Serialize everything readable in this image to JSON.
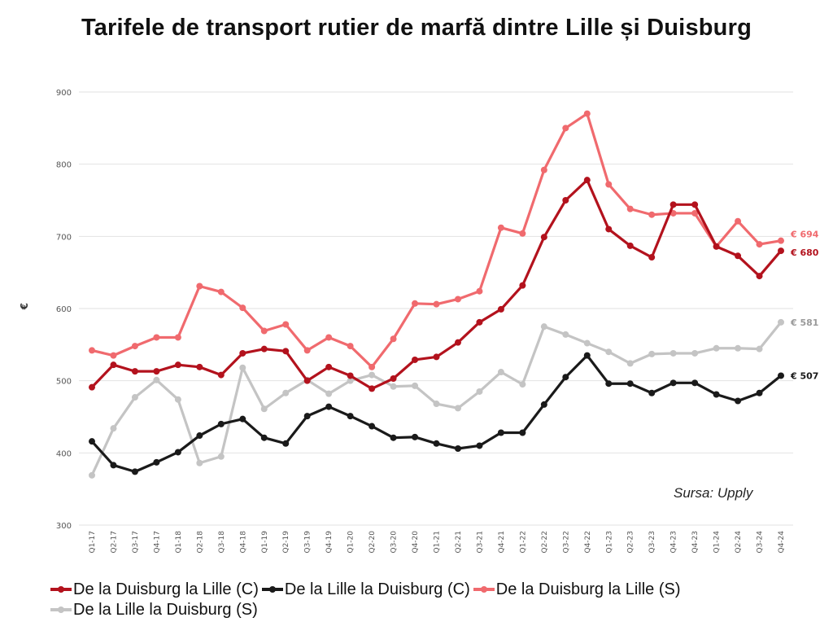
{
  "chart_data": {
    "type": "line",
    "title": "Tarifele de transport rutier de marfă dintre Lille și Duisburg",
    "xlabel": "",
    "ylabel": "€",
    "ylim": [
      300,
      900
    ],
    "yticks": [
      300,
      400,
      500,
      600,
      700,
      800,
      900
    ],
    "grid": true,
    "legend_position": "bottom",
    "categories": [
      "Q1-17",
      "Q2-17",
      "Q3-17",
      "Q4-17",
      "Q1-18",
      "Q2-18",
      "Q3-18",
      "Q4-18",
      "Q1-19",
      "Q2-19",
      "Q3-19",
      "Q4-19",
      "Q1-20",
      "Q2-20",
      "Q3-20",
      "Q4-20",
      "Q1-21",
      "Q2-21",
      "Q3-21",
      "Q4-21",
      "Q1-22",
      "Q2-22",
      "Q3-22",
      "Q4-22",
      "Q1-23",
      "Q2-23",
      "Q3-23",
      "Q4-23",
      "Q4-23",
      "Q1-24",
      "Q2-24",
      "Q3-24",
      "Q4-24"
    ],
    "series": [
      {
        "name": "De la Duisburg la Lille (C)",
        "color": "#b3121d",
        "end_label": "€ 680",
        "values": [
          491,
          522,
          513,
          513,
          522,
          519,
          508,
          538,
          544,
          541,
          500,
          519,
          507,
          489,
          503,
          529,
          533,
          553,
          581,
          599,
          632,
          699,
          750,
          778,
          710,
          687,
          671,
          744,
          744,
          686,
          673,
          645,
          680
        ]
      },
      {
        "name": "De la Lille la Duisburg (C)",
        "color": "#1a1a1a",
        "end_label": "€ 507",
        "values": [
          416,
          383,
          374,
          387,
          401,
          424,
          440,
          447,
          421,
          413,
          451,
          464,
          451,
          437,
          421,
          422,
          413,
          406,
          410,
          428,
          428,
          467,
          505,
          535,
          496,
          496,
          483,
          497,
          497,
          481,
          472,
          483,
          507
        ]
      },
      {
        "name": "De la Duisburg la Lille (S)",
        "color": "#f06a6e",
        "end_label": "€ 694",
        "values": [
          542,
          535,
          548,
          560,
          560,
          631,
          623,
          601,
          569,
          578,
          542,
          560,
          548,
          519,
          558,
          607,
          606,
          613,
          624,
          712,
          704,
          792,
          850,
          870,
          772,
          738,
          730,
          732,
          732,
          686,
          721,
          689,
          694
        ]
      },
      {
        "name": "De la Lille la Duisburg (S)",
        "color": "#c4c4c4",
        "end_label": "€ 581",
        "values": [
          369,
          434,
          477,
          501,
          474,
          386,
          395,
          518,
          461,
          483,
          501,
          482,
          500,
          508,
          492,
          493,
          468,
          462,
          485,
          512,
          495,
          575,
          564,
          552,
          540,
          524,
          537,
          538,
          538,
          545,
          545,
          544,
          581
        ]
      }
    ],
    "annotations": [
      "Sursa: Upply"
    ]
  },
  "source_label": "Sursa: Upply"
}
